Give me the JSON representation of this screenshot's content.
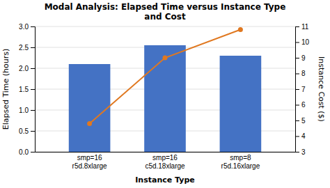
{
  "chart_data": {
    "type": "bar",
    "title": "Modal Analysis: Elapsed Time versus Instance Type\nand Cost",
    "categories": [
      "smp=16\nr5d.8xlarge",
      "smp=16\nc5d.18xlarge",
      "smp=8\nr5d.16xlarge"
    ],
    "series": [
      {
        "type": "bar",
        "color": "#4472C4",
        "values": [
          2.1,
          2.55,
          2.3
        ]
      },
      {
        "type": "line",
        "axis": "y2",
        "color": "#E07820",
        "marker": "circle",
        "values": [
          4.8,
          9.0,
          10.8
        ]
      }
    ],
    "xlabel": "Instance Type",
    "ylabel": "Elapsed Time (hours)",
    "y2label": "Instance Cost ($)",
    "ylim": [
      0,
      3
    ],
    "yticks": [
      {
        "value": 0,
        "label": "0.0"
      },
      0.5,
      {
        "value": 1.0,
        "label": "1.0"
      },
      1.5,
      {
        "value": 2.0,
        "label": "2.0"
      },
      2.5,
      {
        "value": 3.0,
        "label": "3.0"
      }
    ],
    "y2lim": [
      3,
      11
    ],
    "y2ticks": [
      3,
      4,
      5,
      6,
      7,
      8,
      9,
      10,
      11
    ],
    "grid": true
  }
}
